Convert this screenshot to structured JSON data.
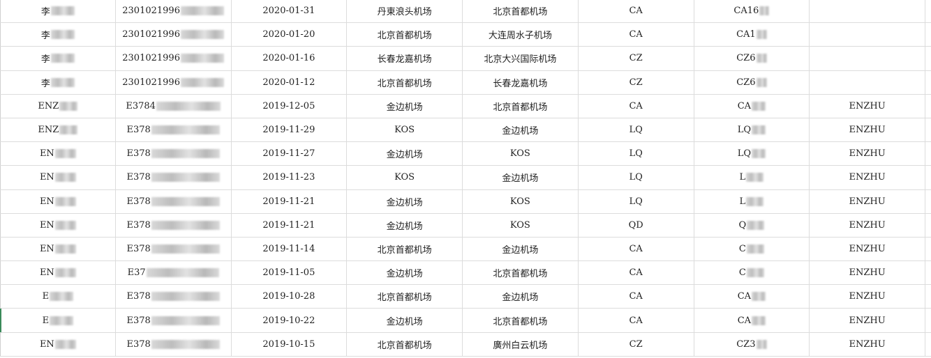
{
  "rows": [
    [
      "李",
      "2301021996",
      "2020-01-31",
      "丹東浪头机场",
      "北京首都机场",
      "CA",
      "CA16",
      ""
    ],
    [
      "李",
      "2301021996",
      "2020-01-20",
      "北京首都机场",
      "大连周水子机场",
      "CA",
      "CA1",
      ""
    ],
    [
      "李",
      "2301021996",
      "2020-01-16",
      "长春龙嘉机场",
      "北京大兴国际机场",
      "CZ",
      "CZ6",
      ""
    ],
    [
      "李",
      "2301021996",
      "2020-01-12",
      "北京首都机场",
      "长春龙嘉机场",
      "CZ",
      "CZ6",
      ""
    ],
    [
      "ENZ",
      "E3784",
      "2019-12-05",
      "金边机场",
      "北京首都机场",
      "CA",
      "CA",
      "ENZHU"
    ],
    [
      "ENZ",
      "E378",
      "2019-11-29",
      "KOS",
      "金边机场",
      "LQ",
      "LQ",
      "ENZHU"
    ],
    [
      "EN",
      "E378",
      "2019-11-27",
      "金边机场",
      "KOS",
      "LQ",
      "LQ",
      "ENZHU"
    ],
    [
      "EN",
      "E378",
      "2019-11-23",
      "KOS",
      "金边机场",
      "LQ",
      "L",
      "ENZHU"
    ],
    [
      "EN",
      "E378",
      "2019-11-21",
      "金边机场",
      "KOS",
      "LQ",
      "L",
      "ENZHU"
    ],
    [
      "EN",
      "E378",
      "2019-11-21",
      "金边机场",
      "KOS",
      "QD",
      "Q",
      "ENZHU"
    ],
    [
      "EN",
      "E378",
      "2019-11-14",
      "北京首都机场",
      "金边机场",
      "CA",
      "C",
      "ENZHU"
    ],
    [
      "EN",
      "E37",
      "2019-11-05",
      "金边机场",
      "北京首都机场",
      "CA",
      "C",
      "ENZHU"
    ],
    [
      "E",
      "E378",
      "2019-10-28",
      "北京首都机场",
      "金边机场",
      "CA",
      "CA",
      "ENZHU"
    ],
    [
      "E",
      "E378",
      "2019-10-22",
      "金边机场",
      "北京首都机场",
      "CA",
      "CA",
      "ENZHU"
    ],
    [
      "EN",
      "E378",
      "2019-10-15",
      "北京首都机场",
      "廣州白云机场",
      "CZ",
      "CZ3",
      "ENZHU"
    ]
  ],
  "redacted_columns": [
    0,
    1,
    6
  ],
  "colors": {
    "grid_line": "#dcdcdc",
    "selection": "#3a8a5a"
  }
}
